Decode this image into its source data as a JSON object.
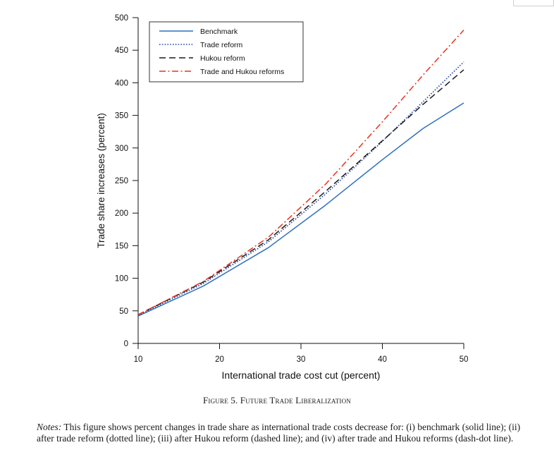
{
  "chart_data": {
    "type": "line",
    "title": "",
    "xlabel": "International trade cost cut (percent)",
    "ylabel": "Trade share increases (percent)",
    "xlim": [
      10,
      50
    ],
    "ylim": [
      0,
      500
    ],
    "xticks": [
      10,
      20,
      30,
      40,
      50
    ],
    "yticks": [
      0,
      50,
      100,
      150,
      200,
      250,
      300,
      350,
      400,
      450,
      500
    ],
    "legend_position": "top-left",
    "grid": false,
    "series": [
      {
        "name": "Benchmark",
        "style": "solid",
        "color": "#2f6fbf",
        "x": [
          10,
          18,
          26,
          33,
          40,
          45,
          50
        ],
        "y": [
          42,
          88,
          147,
          212,
          282,
          330,
          369
        ]
      },
      {
        "name": "Trade reform",
        "style": "dotted",
        "color": "#2545a8",
        "x": [
          10,
          18,
          26,
          33,
          40,
          45,
          50
        ],
        "y": [
          43,
          92,
          156,
          229,
          310,
          371,
          432
        ]
      },
      {
        "name": "Hukou reform",
        "style": "dashed",
        "color": "#1a1a1a",
        "x": [
          10,
          18,
          26,
          33,
          40,
          45,
          50
        ],
        "y": [
          44,
          94,
          159,
          233,
          311,
          367,
          420
        ]
      },
      {
        "name": "Trade and Hukou reforms",
        "style": "dashdot",
        "color": "#e8321e",
        "x": [
          10,
          18,
          26,
          33,
          40,
          45,
          50
        ],
        "y": [
          44,
          95,
          163,
          244,
          340,
          412,
          481
        ]
      }
    ]
  },
  "caption": {
    "figure": "Figure 5.",
    "title": "Future Trade Liberalization"
  },
  "notes": {
    "label": "Notes:",
    "text": " This figure shows percent changes in trade share as international trade costs decrease for: (i) benchmark (solid line); (ii) after trade reform (dotted line); (iii) after Hukou reform (dashed line); and (iv) after trade and Hukou reforms (dash-dot line)."
  }
}
